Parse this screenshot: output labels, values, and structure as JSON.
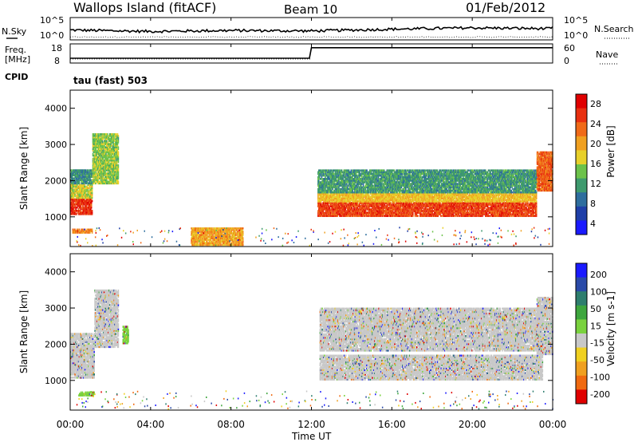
{
  "header": {
    "title": "Wallops Island (fitACF)",
    "beam": "Beam 10",
    "date": "01/Feb/2012"
  },
  "left_labels": {
    "nsky": "N.Sky",
    "freq": "Freq.",
    "freq_unit": "[MHz]",
    "cpid": "CPID",
    "cpid_value": "tau (fast) 503"
  },
  "right_labels": {
    "nsearch": "N.Search",
    "nave": "Nave"
  },
  "noise_axis": {
    "top": "10^5",
    "bottom": "10^0",
    "right_top": "10^5",
    "right_bottom": "10^0"
  },
  "freq_axis": {
    "left_ticks": [
      "18",
      "8"
    ],
    "right_ticks": [
      "60",
      "0"
    ]
  },
  "x_axis": {
    "label": "Time UT",
    "ticks": [
      "00:00",
      "04:00",
      "08:00",
      "12:00",
      "16:00",
      "20:00",
      "00:00"
    ]
  },
  "colors": {
    "power_scale": [
      "#1a1aff",
      "#1f3fa8",
      "#2e6e9e",
      "#3e9a6e",
      "#6cc24a",
      "#e8d02a",
      "#f0a020",
      "#f06a18",
      "#e83010",
      "#e00000"
    ],
    "velocity_scale": [
      "#1a1aff",
      "#2a4aa8",
      "#2e7e6e",
      "#3ea63e",
      "#7ad23e",
      "#c8c8c8",
      "#f0d020",
      "#f0a020",
      "#f06a10",
      "#e00000"
    ]
  },
  "chart_data": [
    {
      "type": "line",
      "title": "N.Sky / N.Search",
      "x": [
        "00:00",
        "04:00",
        "08:00",
        "12:00",
        "16:00",
        "20:00",
        "00:00"
      ],
      "series": [
        {
          "name": "N.Sky",
          "values": [
            2.2,
            1.9,
            2.1,
            2.0,
            2.4,
            2.7,
            2.5
          ]
        }
      ],
      "ylim": [
        0,
        5
      ]
    },
    {
      "type": "line",
      "title": "Freq. / Nave",
      "x_hours": [
        0,
        11.9,
        12.0,
        24
      ],
      "series": [
        {
          "name": "Freq.",
          "values": [
            10.5,
            10.5,
            16.0,
            16.0
          ]
        }
      ],
      "ylim": [
        8,
        18
      ]
    },
    {
      "type": "heatmap",
      "title": "Power",
      "ylabel": "Slant Range [km]",
      "colorbar_label": "Power [dB]",
      "colorbar_ticks": [
        "4",
        "8",
        "12",
        "16",
        "20",
        "24",
        "28"
      ],
      "yticks": [
        "1000",
        "2000",
        "3000",
        "4000"
      ],
      "ylim": [
        180,
        4500
      ],
      "xlim_hours": [
        0,
        24
      ],
      "bands": [
        {
          "t0": 0.0,
          "t1": 1.1,
          "r0": 1050,
          "r1": 1500,
          "dB": 27
        },
        {
          "t0": 0.0,
          "t1": 1.1,
          "r0": 1500,
          "r1": 1900,
          "dB": 16
        },
        {
          "t0": 0.0,
          "t1": 1.1,
          "r0": 1900,
          "r1": 2300,
          "dB": 9
        },
        {
          "t0": 1.1,
          "t1": 2.4,
          "r0": 1900,
          "r1": 3300,
          "dB": 14
        },
        {
          "t0": 0.1,
          "t1": 1.1,
          "r0": 540,
          "r1": 660,
          "dB": 22
        },
        {
          "t0": 12.3,
          "t1": 23.2,
          "r0": 1000,
          "r1": 1400,
          "dB": 26
        },
        {
          "t0": 12.3,
          "t1": 23.2,
          "r0": 1400,
          "r1": 1650,
          "dB": 18
        },
        {
          "t0": 12.3,
          "t1": 23.2,
          "r0": 1650,
          "r1": 2300,
          "dB": 10
        },
        {
          "t0": 23.2,
          "t1": 24.0,
          "r0": 1700,
          "r1": 2800,
          "dB": 24
        },
        {
          "t0": 6.0,
          "t1": 8.6,
          "r0": 200,
          "r1": 700,
          "dB": 20
        }
      ]
    },
    {
      "type": "heatmap",
      "title": "Velocity",
      "ylabel": "Slant Range [km]",
      "colorbar_label": "Velocity [m s-1]",
      "colorbar_ticks": [
        "200",
        "100",
        "50",
        "15",
        "-15",
        "-50",
        "-100",
        "-200"
      ],
      "yticks": [
        "1000",
        "2000",
        "3000",
        "4000"
      ],
      "ylim": [
        180,
        4500
      ],
      "xlim_hours": [
        0,
        24
      ],
      "bands": [
        {
          "t0": 0.0,
          "t1": 1.2,
          "r0": 1050,
          "r1": 2300,
          "v": 0
        },
        {
          "t0": 1.2,
          "t1": 2.4,
          "r0": 1900,
          "r1": 3500,
          "v": 0
        },
        {
          "t0": 0.4,
          "t1": 1.2,
          "r0": 560,
          "r1": 680,
          "v": 60
        },
        {
          "t0": 2.6,
          "t1": 2.9,
          "r0": 2000,
          "r1": 2500,
          "v": 60
        },
        {
          "t0": 12.4,
          "t1": 23.5,
          "r0": 1000,
          "r1": 1700,
          "v": 0
        },
        {
          "t0": 12.4,
          "t1": 23.5,
          "r0": 1800,
          "r1": 3000,
          "v": 0
        },
        {
          "t0": 23.2,
          "t1": 24.0,
          "r0": 1700,
          "r1": 3300,
          "v": 0
        }
      ]
    }
  ]
}
